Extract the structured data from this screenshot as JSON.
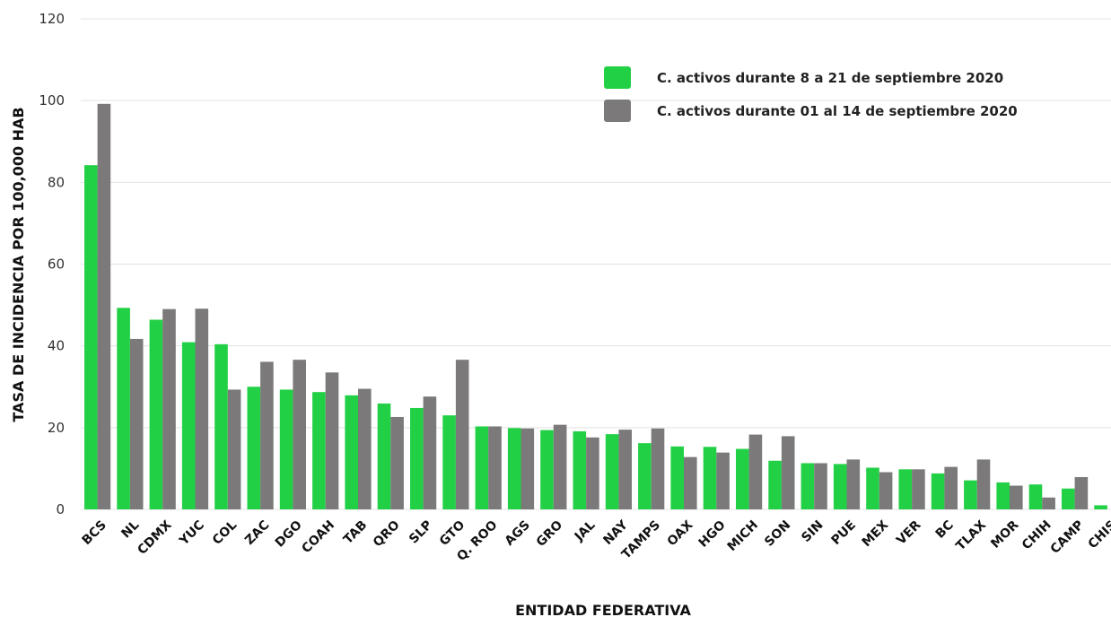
{
  "chart_data": {
    "type": "bar",
    "xlabel": "ENTIDAD FEDERATIVA",
    "ylabel": "TASA DE INCIDENCIA  POR 100,000 HAB",
    "ylim": [
      0,
      120
    ],
    "yticks": [
      0,
      20,
      40,
      60,
      80,
      100,
      120
    ],
    "grid": true,
    "legend_position": "top-right",
    "categories": [
      "BCS",
      "NL",
      "CDMX",
      "YUC",
      "COL",
      "ZAC",
      "DGO",
      "COAH",
      "TAB",
      "QRO",
      "SLP",
      "GTO",
      "Q. ROO",
      "AGS",
      "GRO",
      "JAL",
      "NAY",
      "TAMPS",
      "OAX",
      "HGO",
      "MICH",
      "SON",
      "SIN",
      "PUE",
      "MEX",
      "VER",
      "BC",
      "TLAX",
      "MOR",
      "CHIH",
      "CAMP",
      "CHIS"
    ],
    "series": [
      {
        "name": "C. activos durante 8 a 21 de septiembre 2020",
        "color": "#22d046",
        "values": [
          84.2,
          49.3,
          46.4,
          40.9,
          40.4,
          30.0,
          29.3,
          28.7,
          27.9,
          25.9,
          24.8,
          23.0,
          20.3,
          19.9,
          19.4,
          19.1,
          18.4,
          16.2,
          15.4,
          15.3,
          14.8,
          11.9,
          11.3,
          11.1,
          10.2,
          9.8,
          8.8,
          7.1,
          6.6,
          6.1,
          5.1,
          1.0
        ]
      },
      {
        "name": "C. activos durante 01 al 14 de septiembre 2020",
        "color": "#7b7979",
        "values": [
          99.2,
          41.7,
          49.0,
          49.1,
          29.3,
          36.1,
          36.6,
          33.5,
          29.5,
          22.6,
          27.6,
          36.6,
          20.3,
          19.8,
          20.7,
          17.6,
          19.5,
          19.8,
          12.8,
          13.9,
          18.3,
          17.9,
          11.3,
          12.2,
          9.1,
          9.8,
          10.4,
          12.2,
          5.8,
          2.9,
          7.9,
          null
        ]
      }
    ]
  }
}
